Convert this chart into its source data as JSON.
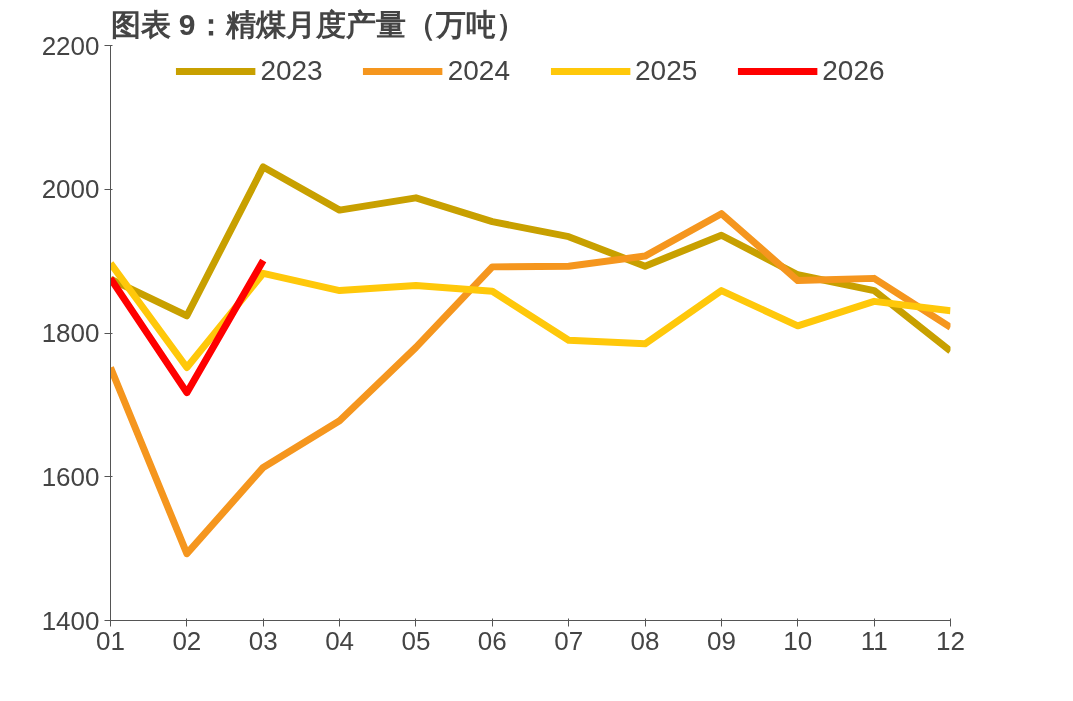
{
  "chart_data": {
    "type": "line",
    "title": "图表 9：精煤月度产量（万吨）",
    "categories": [
      "01",
      "02",
      "03",
      "04",
      "05",
      "06",
      "07",
      "08",
      "09",
      "10",
      "11",
      "12"
    ],
    "series": [
      {
        "name": "2023",
        "color": "#c8a000",
        "values": [
          1875,
          1824,
          2031,
          1971,
          1988,
          1955,
          1934,
          1893,
          1936,
          1881,
          1859,
          1775
        ]
      },
      {
        "name": "2024",
        "color": "#f5961e",
        "values": [
          1752,
          1493,
          1613,
          1678,
          1780,
          1892,
          1893,
          1907,
          1966,
          1873,
          1876,
          1808
        ]
      },
      {
        "name": "2025",
        "color": "#ffc80a",
        "values": [
          1897,
          1752,
          1883,
          1859,
          1866,
          1858,
          1790,
          1785,
          1859,
          1810,
          1844,
          1831
        ]
      },
      {
        "name": "2026",
        "color": "#ff0000",
        "values": [
          1876,
          1717,
          1901,
          null,
          null,
          null,
          null,
          null,
          null,
          null,
          null,
          null
        ]
      }
    ],
    "ylim": [
      1400,
      2200
    ],
    "yticks": [
      1400,
      1600,
      1800,
      2000,
      2200
    ],
    "grid": false,
    "legend": "top",
    "line_style": "solid",
    "marker": "none"
  }
}
